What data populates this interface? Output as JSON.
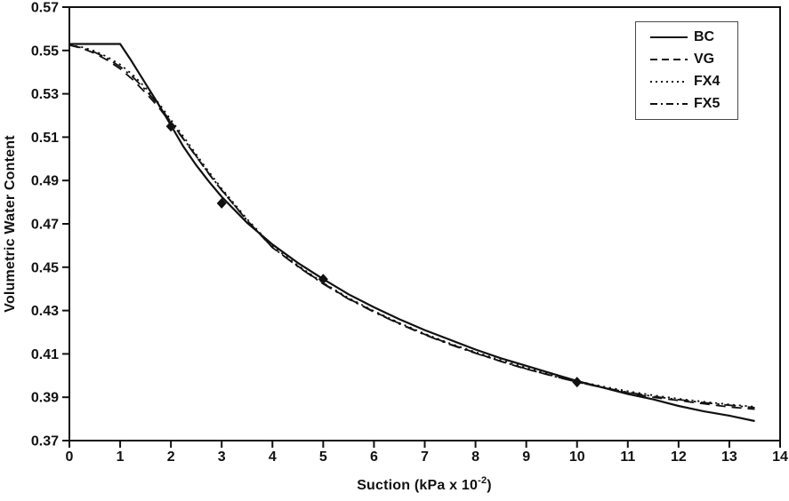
{
  "figure": {
    "background": "#ffffff",
    "ink_color": "#111111",
    "legend_border_color": "#4a4a4a"
  },
  "axes": {
    "x": {
      "label_prefix": "Suction (kPa x 10",
      "label_sup": "-2",
      "label_suffix": ")",
      "ticks": [
        0,
        1,
        2,
        3,
        4,
        5,
        6,
        7,
        8,
        9,
        10,
        11,
        12,
        13,
        14
      ]
    },
    "y": {
      "label": "Volumetric Water Content",
      "ticks": [
        0.37,
        0.39,
        0.41,
        0.43,
        0.45,
        0.47,
        0.49,
        0.51,
        0.53,
        0.55,
        0.57
      ]
    }
  },
  "chart_data": {
    "type": "line",
    "title": "",
    "xlabel": "Suction (kPa x 10^-2)",
    "ylabel": "Volumetric Water Content",
    "xlim": [
      0,
      14
    ],
    "ylim": [
      0.37,
      0.57
    ],
    "grid": false,
    "legend_position": "top-right",
    "legend_entries": [
      "BC",
      "VG",
      "FX4",
      "FX5"
    ],
    "line_styles": {
      "solid": "",
      "dashed": "11,7",
      "dotted": "2.2,4.5",
      "dashdot": "13,5.5,2.5,5.5"
    },
    "legend_line_styles": {
      "solid": "",
      "dashed": "8,5",
      "dotted": "2,4",
      "dashdot": "8,4,2,4"
    },
    "series": [
      {
        "name": "BC",
        "style": "solid",
        "x": [
          0,
          1,
          1.2,
          1.4,
          1.6,
          1.8,
          2,
          2.25,
          2.5,
          2.75,
          3,
          3.5,
          4,
          4.5,
          5,
          5.5,
          6,
          6.5,
          7,
          7.5,
          8,
          8.5,
          9,
          9.5,
          10,
          10.5,
          11,
          11.5,
          12,
          12.5,
          13,
          13.5
        ],
        "y": [
          0.553,
          0.553,
          0.546,
          0.5385,
          0.531,
          0.5235,
          0.5155,
          0.5055,
          0.497,
          0.4895,
          0.4825,
          0.4705,
          0.4605,
          0.452,
          0.4445,
          0.4375,
          0.4315,
          0.426,
          0.421,
          0.4165,
          0.412,
          0.408,
          0.4045,
          0.401,
          0.3975,
          0.3945,
          0.3915,
          0.389,
          0.386,
          0.3835,
          0.3815,
          0.379
        ]
      },
      {
        "name": "VG",
        "style": "dashed",
        "x": [
          0,
          0.25,
          0.5,
          0.75,
          1,
          1.25,
          1.5,
          1.75,
          2,
          2.25,
          2.5,
          2.75,
          3,
          3.5,
          4,
          4.5,
          5,
          5.5,
          6,
          6.5,
          7,
          7.5,
          8,
          8.5,
          9,
          9.5,
          10,
          10.5,
          11,
          11.5,
          12,
          12.5,
          13,
          13.5
        ],
        "y": [
          0.5525,
          0.551,
          0.5487,
          0.5455,
          0.5415,
          0.5365,
          0.5305,
          0.524,
          0.5165,
          0.509,
          0.501,
          0.493,
          0.4855,
          0.4715,
          0.459,
          0.4505,
          0.4425,
          0.4355,
          0.4295,
          0.424,
          0.419,
          0.4145,
          0.4105,
          0.4065,
          0.403,
          0.4,
          0.397,
          0.3945,
          0.392,
          0.39,
          0.3885,
          0.387,
          0.3855,
          0.3845
        ]
      },
      {
        "name": "FX4",
        "style": "dotted",
        "x": [
          0,
          0.25,
          0.5,
          0.75,
          1,
          1.25,
          1.5,
          1.75,
          2,
          2.25,
          2.5,
          2.75,
          3,
          3.5,
          4,
          4.5,
          5,
          5.5,
          6,
          6.5,
          7,
          7.5,
          8,
          8.5,
          9,
          9.5,
          10,
          10.5,
          11,
          11.5,
          12,
          12.5,
          13,
          13.5
        ],
        "y": [
          0.5525,
          0.5515,
          0.5497,
          0.547,
          0.5435,
          0.5388,
          0.5328,
          0.526,
          0.518,
          0.5102,
          0.502,
          0.494,
          0.4863,
          0.4722,
          0.4597,
          0.4508,
          0.4428,
          0.4358,
          0.4298,
          0.4243,
          0.4193,
          0.4148,
          0.4108,
          0.4071,
          0.4036,
          0.4004,
          0.3975,
          0.395,
          0.3928,
          0.3909,
          0.3893,
          0.3879,
          0.3867,
          0.3856
        ]
      },
      {
        "name": "FX5",
        "style": "dashdot",
        "x": [
          0,
          0.25,
          0.5,
          0.75,
          1,
          1.25,
          1.5,
          1.75,
          2,
          2.25,
          2.5,
          2.75,
          3,
          3.5,
          4,
          4.5,
          5,
          5.5,
          6,
          6.5,
          7,
          7.5,
          8,
          8.5,
          9,
          9.5,
          10,
          10.5,
          11,
          11.5,
          12,
          12.5,
          13,
          13.5
        ],
        "y": [
          0.5525,
          0.5512,
          0.5492,
          0.5463,
          0.5425,
          0.5378,
          0.5318,
          0.525,
          0.517,
          0.5092,
          0.5012,
          0.4932,
          0.4856,
          0.4716,
          0.4591,
          0.4503,
          0.4423,
          0.4353,
          0.4293,
          0.4238,
          0.4188,
          0.4143,
          0.4103,
          0.4066,
          0.4031,
          0.3999,
          0.397,
          0.3945,
          0.3923,
          0.3904,
          0.3889,
          0.3875,
          0.3863,
          0.3852
        ]
      }
    ],
    "observed_points": {
      "label": "measured data points",
      "marker": "diamond",
      "color": "#111111",
      "points": [
        [
          2,
          0.515
        ],
        [
          3,
          0.4795
        ],
        [
          5,
          0.4445
        ],
        [
          10,
          0.397
        ]
      ]
    }
  }
}
